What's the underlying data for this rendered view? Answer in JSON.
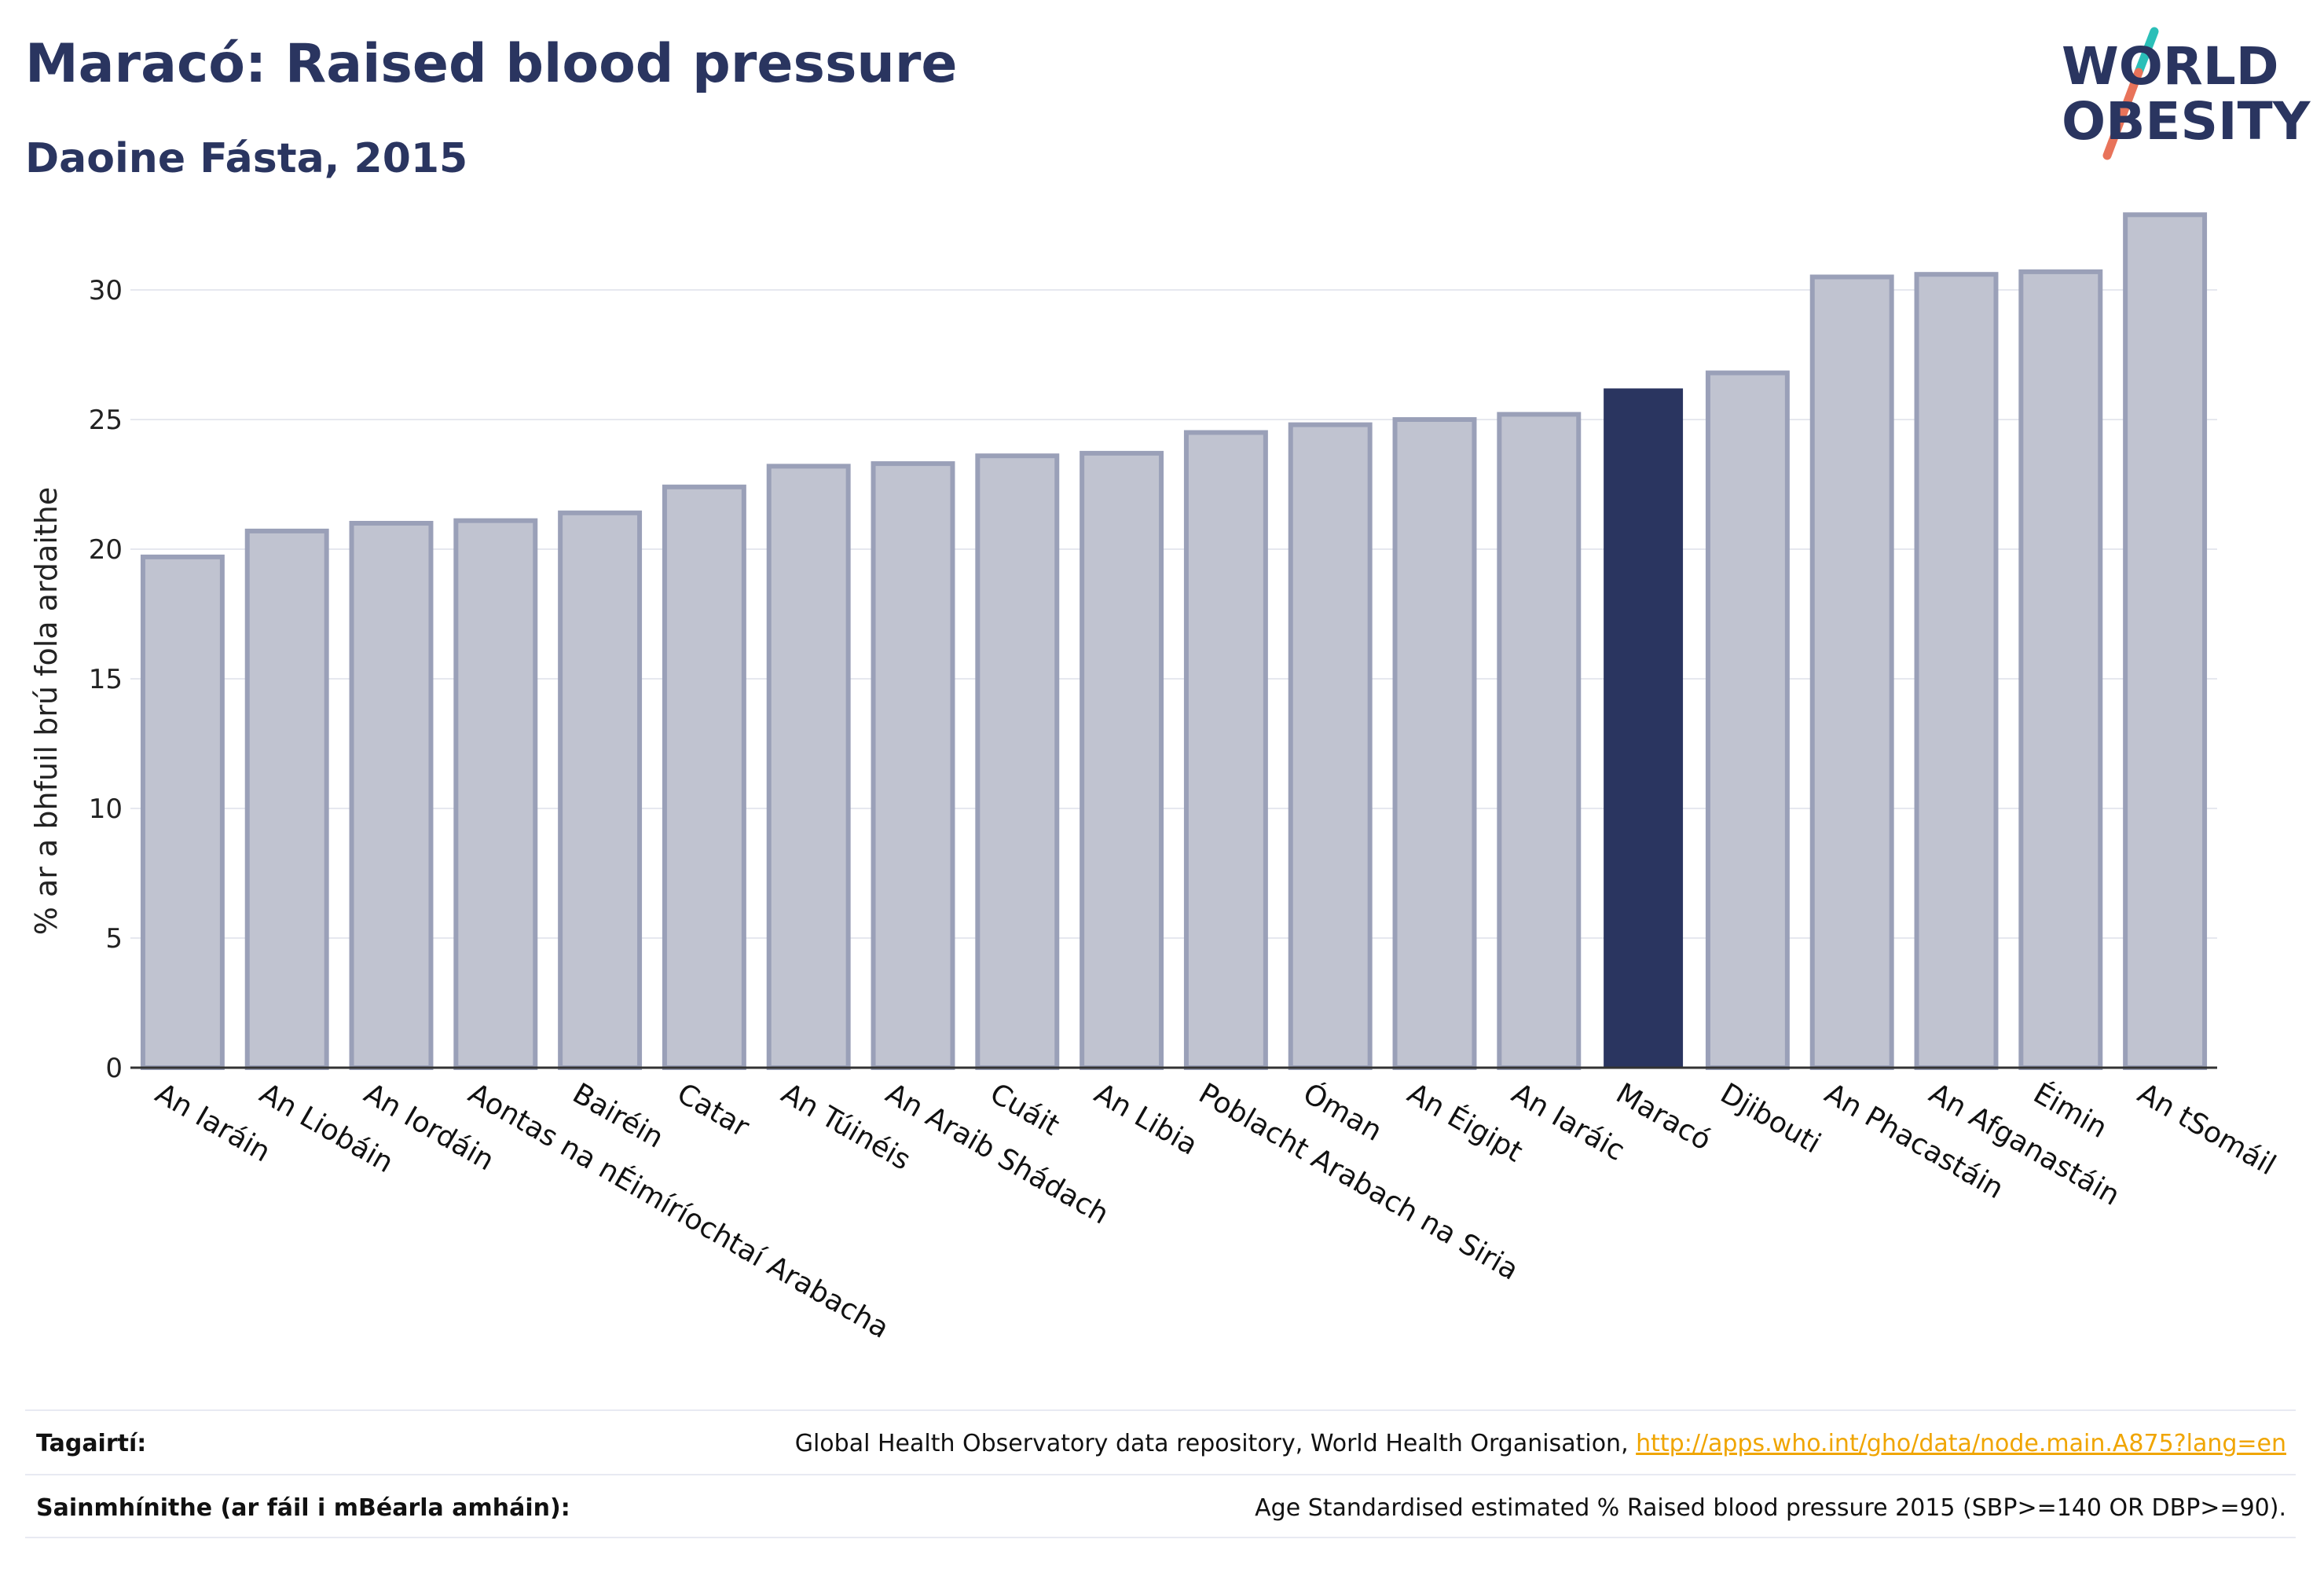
{
  "header": {
    "title": "Maracó: Raised blood pressure",
    "subtitle": "Daoine Fásta, 2015"
  },
  "logo": {
    "line1": "WORLD",
    "line2": "OBESITY",
    "accent_teal": "#2bbfb8",
    "accent_coral": "#e8735a"
  },
  "colors": {
    "highlight_bar": "#2a3560",
    "other_bar_fill": "#c0c3d0",
    "other_bar_stroke": "#9aa0b8",
    "text": "#2a3560"
  },
  "chart_data": {
    "type": "bar",
    "ylabel": "% ar a bhfuil brú fola ardaithe",
    "ylim": [
      0,
      33
    ],
    "yticks": [
      0,
      5,
      10,
      15,
      20,
      25,
      30
    ],
    "grid": true,
    "highlight": "Maracó",
    "categories": [
      "An Iaráin",
      "An Liobáin",
      "An Iordáin",
      "Aontas na nÉimíríochtaí Arabacha",
      "Bairéin",
      "Catar",
      "An Túinéis",
      "An Araib Shádach",
      "Cuáit",
      "An Libia",
      "Poblacht Arabach na Siria",
      "Óman",
      "An Éigipt",
      "An Iaráic",
      "Maracó",
      "Djibouti",
      "An Phacastáin",
      "An Afganastáin",
      "Éimin",
      "An tSomáil"
    ],
    "values": [
      19.7,
      20.7,
      21.0,
      21.1,
      21.4,
      22.4,
      23.2,
      23.3,
      23.6,
      23.7,
      24.5,
      24.8,
      25.0,
      25.2,
      26.2,
      26.8,
      30.5,
      30.6,
      30.7,
      32.9
    ]
  },
  "footer": {
    "references_label": "Tagairtí:",
    "references_text": "Global Health Observatory data repository, World Health Organisation, ",
    "references_link": "http://apps.who.int/gho/data/node.main.A875?lang=en",
    "definitions_label": "Sainmhínithe (ar fáil i mBéarla amháin):",
    "definitions_text": "Age Standardised estimated % Raised blood pressure 2015 (SBP>=140 OR DBP>=90)."
  }
}
